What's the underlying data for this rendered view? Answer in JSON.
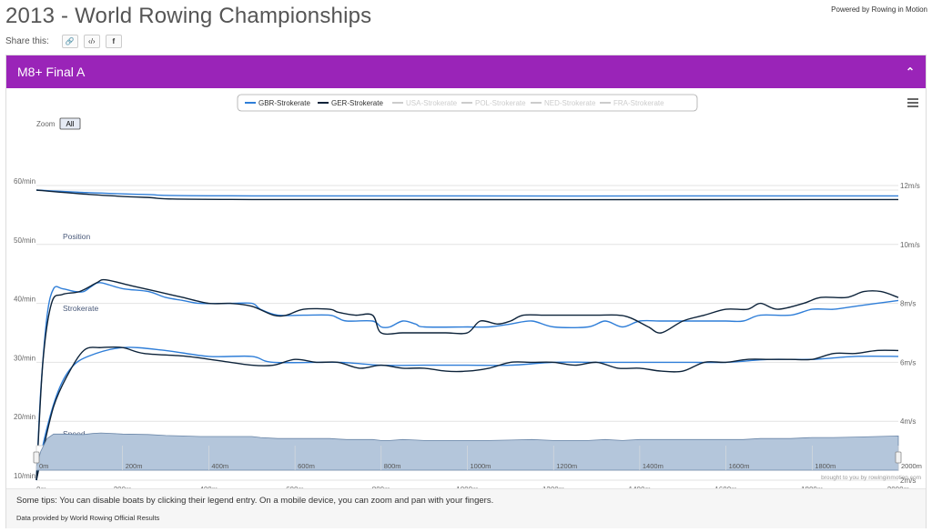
{
  "page": {
    "title": "2013 - World Rowing Championships",
    "powered_by": "Powered by Rowing in Motion",
    "share_label": "Share this:",
    "share_buttons": [
      {
        "icon": "link-icon",
        "glyph": "🔗"
      },
      {
        "icon": "embed-code-icon",
        "glyph": "‹/›"
      },
      {
        "icon": "facebook-icon",
        "glyph": "f"
      }
    ]
  },
  "panel": {
    "title": "M8+ Final A",
    "collapse_glyph": "⌃",
    "menu_icon": "hamburger-menu-icon"
  },
  "zoom": {
    "label": "Zoom",
    "button": "All"
  },
  "chart_data": {
    "type": "line",
    "legend_position": "top-center",
    "legend": [
      {
        "name": "GBR-Strokerate",
        "color": "#2f7ed8",
        "enabled": true
      },
      {
        "name": "GER-Strokerate",
        "color": "#0d233a",
        "enabled": true
      },
      {
        "name": "USA-Strokerate",
        "color": "#cccccc",
        "enabled": false
      },
      {
        "name": "POL-Strokerate",
        "color": "#cccccc",
        "enabled": false
      },
      {
        "name": "NED-Strokerate",
        "color": "#cccccc",
        "enabled": false
      },
      {
        "name": "FRA-Strokerate",
        "color": "#cccccc",
        "enabled": false
      }
    ],
    "panes": [
      "Position",
      "Strokerate",
      "Speed"
    ],
    "x_axis": {
      "min": 0,
      "max": 2000,
      "unit": "m",
      "ticks": [
        "0m",
        "200m",
        "400m",
        "600m",
        "800m",
        "1000m",
        "1200m",
        "1400m",
        "1600m",
        "1800m",
        "2000m"
      ]
    },
    "y_axis_left": {
      "min": 10,
      "max": 60,
      "unit": "/min",
      "ticks": [
        "10/min",
        "20/min",
        "30/min",
        "40/min",
        "50/min",
        "60/min"
      ]
    },
    "y_axis_right": {
      "min": 2,
      "max": 12,
      "unit": "m/s",
      "ticks": [
        "2m/s",
        "4m/s",
        "6m/s",
        "8m/s",
        "10m/s",
        "12m/s"
      ]
    },
    "grid": true,
    "series": [
      {
        "name": "GBR",
        "color": "#2f7ed8",
        "position": [
          [
            0,
            0
          ],
          [
            100,
            -1.5
          ],
          [
            250,
            -3
          ],
          [
            500,
            -4
          ],
          [
            2000,
            -4
          ]
        ],
        "strokerate": [
          [
            0,
            10
          ],
          [
            10,
            25
          ],
          [
            25,
            38
          ],
          [
            40,
            42.5
          ],
          [
            60,
            42.5
          ],
          [
            90,
            42
          ],
          [
            110,
            42
          ],
          [
            130,
            43
          ],
          [
            150,
            43.5
          ],
          [
            200,
            42.5
          ],
          [
            260,
            42
          ],
          [
            300,
            41
          ],
          [
            340,
            40.5
          ],
          [
            380,
            40
          ],
          [
            450,
            40
          ],
          [
            500,
            40
          ],
          [
            520,
            39
          ],
          [
            560,
            38
          ],
          [
            620,
            38
          ],
          [
            680,
            38
          ],
          [
            700,
            37.5
          ],
          [
            720,
            37
          ],
          [
            780,
            37
          ],
          [
            800,
            36
          ],
          [
            820,
            36
          ],
          [
            850,
            37
          ],
          [
            880,
            36.5
          ],
          [
            900,
            36
          ],
          [
            1000,
            36
          ],
          [
            1050,
            36
          ],
          [
            1100,
            36.5
          ],
          [
            1150,
            37
          ],
          [
            1200,
            36
          ],
          [
            1280,
            36
          ],
          [
            1320,
            37
          ],
          [
            1360,
            36
          ],
          [
            1400,
            37
          ],
          [
            1450,
            37
          ],
          [
            1500,
            37
          ],
          [
            1560,
            37
          ],
          [
            1600,
            37
          ],
          [
            1640,
            37
          ],
          [
            1680,
            38
          ],
          [
            1750,
            38
          ],
          [
            1800,
            39
          ],
          [
            1850,
            39
          ],
          [
            1900,
            39.5
          ],
          [
            1950,
            40
          ],
          [
            2000,
            40.5
          ]
        ],
        "speed": [
          [
            0,
            2
          ],
          [
            20,
            3.5
          ],
          [
            50,
            5
          ],
          [
            80,
            5.8
          ],
          [
            120,
            6.2
          ],
          [
            200,
            6.5
          ],
          [
            300,
            6.4
          ],
          [
            400,
            6.2
          ],
          [
            500,
            6.2
          ],
          [
            550,
            6
          ],
          [
            700,
            6
          ],
          [
            800,
            5.9
          ],
          [
            900,
            5.9
          ],
          [
            1000,
            5.9
          ],
          [
            1100,
            5.9
          ],
          [
            1200,
            6
          ],
          [
            1300,
            6
          ],
          [
            1400,
            6
          ],
          [
            1500,
            6
          ],
          [
            1600,
            6
          ],
          [
            1700,
            6.1
          ],
          [
            1800,
            6.1
          ],
          [
            1900,
            6.2
          ],
          [
            2000,
            6.2
          ]
        ]
      },
      {
        "name": "GER",
        "color": "#0d233a",
        "position": [
          [
            0,
            0
          ],
          [
            100,
            -2.5
          ],
          [
            250,
            -5
          ],
          [
            500,
            -6.5
          ],
          [
            2000,
            -6.5
          ]
        ],
        "strokerate": [
          [
            0,
            10
          ],
          [
            15,
            30
          ],
          [
            35,
            40
          ],
          [
            60,
            41.5
          ],
          [
            100,
            42
          ],
          [
            140,
            43.5
          ],
          [
            160,
            44
          ],
          [
            220,
            43
          ],
          [
            280,
            42
          ],
          [
            340,
            41
          ],
          [
            400,
            40
          ],
          [
            450,
            40
          ],
          [
            500,
            39.5
          ],
          [
            550,
            38
          ],
          [
            580,
            38
          ],
          [
            620,
            39
          ],
          [
            680,
            39
          ],
          [
            700,
            38.5
          ],
          [
            740,
            38
          ],
          [
            780,
            38
          ],
          [
            800,
            35
          ],
          [
            850,
            35
          ],
          [
            900,
            35
          ],
          [
            950,
            35
          ],
          [
            1000,
            35
          ],
          [
            1030,
            37
          ],
          [
            1070,
            36.5
          ],
          [
            1100,
            37
          ],
          [
            1130,
            38
          ],
          [
            1180,
            38
          ],
          [
            1250,
            38
          ],
          [
            1300,
            38
          ],
          [
            1350,
            38
          ],
          [
            1380,
            37.5
          ],
          [
            1420,
            36
          ],
          [
            1450,
            35
          ],
          [
            1500,
            37
          ],
          [
            1550,
            38
          ],
          [
            1600,
            39
          ],
          [
            1650,
            39
          ],
          [
            1680,
            40
          ],
          [
            1720,
            39
          ],
          [
            1780,
            40
          ],
          [
            1820,
            41
          ],
          [
            1880,
            41
          ],
          [
            1920,
            42
          ],
          [
            1960,
            42
          ],
          [
            2000,
            41
          ]
        ],
        "speed": [
          [
            0,
            2
          ],
          [
            15,
            3
          ],
          [
            40,
            4.5
          ],
          [
            70,
            5.5
          ],
          [
            110,
            6.4
          ],
          [
            150,
            6.5
          ],
          [
            200,
            6.5
          ],
          [
            250,
            6.3
          ],
          [
            350,
            6.2
          ],
          [
            450,
            6
          ],
          [
            500,
            5.9
          ],
          [
            550,
            5.9
          ],
          [
            600,
            6.1
          ],
          [
            650,
            6
          ],
          [
            700,
            6
          ],
          [
            750,
            5.8
          ],
          [
            800,
            5.9
          ],
          [
            850,
            5.8
          ],
          [
            900,
            5.8
          ],
          [
            950,
            5.7
          ],
          [
            1000,
            5.7
          ],
          [
            1050,
            5.8
          ],
          [
            1100,
            6
          ],
          [
            1150,
            6
          ],
          [
            1200,
            6
          ],
          [
            1250,
            5.9
          ],
          [
            1300,
            6
          ],
          [
            1350,
            5.8
          ],
          [
            1400,
            5.8
          ],
          [
            1450,
            5.7
          ],
          [
            1500,
            5.7
          ],
          [
            1550,
            6
          ],
          [
            1600,
            6
          ],
          [
            1650,
            6.1
          ],
          [
            1700,
            6.1
          ],
          [
            1750,
            6.1
          ],
          [
            1800,
            6.1
          ],
          [
            1850,
            6.3
          ],
          [
            1900,
            6.3
          ],
          [
            1950,
            6.4
          ],
          [
            2000,
            6.4
          ]
        ]
      }
    ]
  },
  "navigator": {
    "ticks": [
      "0m",
      "200m",
      "400m",
      "600m",
      "800m",
      "1000m",
      "1200m",
      "1400m",
      "1600m",
      "1800m",
      "2000m"
    ],
    "credit": "brought to you by rowinginmotion.com"
  },
  "tips": {
    "text": "Some tips: You can disable boats by clicking their legend entry. On a mobile device, you can zoom and pan with your fingers.",
    "source_prefix": "Data provided by ",
    "source_name": "World Rowing Official Results"
  }
}
